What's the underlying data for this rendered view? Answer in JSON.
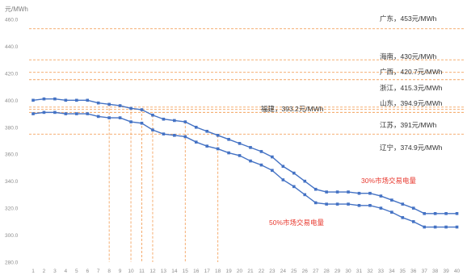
{
  "chart_data": {
    "type": "line",
    "ylabel": "元/MWh",
    "ylim": [
      280,
      460
    ],
    "yticks": [
      "280.0",
      "300.0",
      "320.0",
      "340.0",
      "360.0",
      "380.0",
      "400.0",
      "420.0",
      "440.0",
      "460.0"
    ],
    "x": [
      "1",
      "2",
      "3",
      "4",
      "5",
      "6",
      "7",
      "8",
      "9",
      "10",
      "11",
      "12",
      "13",
      "14",
      "15",
      "16",
      "17",
      "18",
      "19",
      "20",
      "21",
      "22",
      "23",
      "24",
      "25",
      "26",
      "27",
      "28",
      "29",
      "30",
      "31",
      "32",
      "33",
      "34",
      "35",
      "36",
      "37",
      "38",
      "39",
      "40"
    ],
    "series": [
      {
        "name": "30%市场交易电量",
        "color": "#4472C4",
        "label_color": "#E8392F",
        "values": [
          400,
          401,
          401,
          400,
          400,
          400,
          398,
          397,
          396,
          394,
          393,
          389,
          386,
          385,
          384,
          380,
          377,
          374,
          371,
          368,
          365,
          362,
          358,
          351,
          346,
          340,
          334,
          332,
          332,
          332,
          331,
          331,
          329,
          326,
          323,
          320,
          316,
          316,
          316,
          316
        ]
      },
      {
        "name": "50%市场交易电量",
        "color": "#4472C4",
        "label_color": "#E8392F",
        "values": [
          390,
          391,
          391,
          390,
          390,
          390,
          388,
          387,
          387,
          384,
          383,
          378,
          375,
          374,
          373,
          369,
          366,
          364,
          361,
          359,
          355,
          352,
          348,
          341,
          336,
          330,
          324,
          323,
          323,
          323,
          322,
          322,
          320,
          317,
          313,
          310,
          306,
          306,
          306,
          306
        ]
      }
    ],
    "reference_lines": [
      {
        "label": "广东，453元/MWh",
        "value": 453
      },
      {
        "label": "海南，430元/MWh",
        "value": 430
      },
      {
        "label": "广西，420.7元/MWh",
        "value": 420.7
      },
      {
        "label": "浙江，415.3元/MWh",
        "value": 415.3
      },
      {
        "label": "山东，394.9元/MWh",
        "value": 394.9
      },
      {
        "label": "福建，393.2元/MWh",
        "value": 393.2
      },
      {
        "label": "江苏，391元/MWh",
        "value": 391
      },
      {
        "label": "辽宁，374.9元/MWh",
        "value": 374.9
      }
    ],
    "vertical_markers": [
      8,
      10,
      11,
      12,
      15,
      18
    ],
    "reference_line_color": "#F4A460",
    "grid": false,
    "legend": "none"
  }
}
